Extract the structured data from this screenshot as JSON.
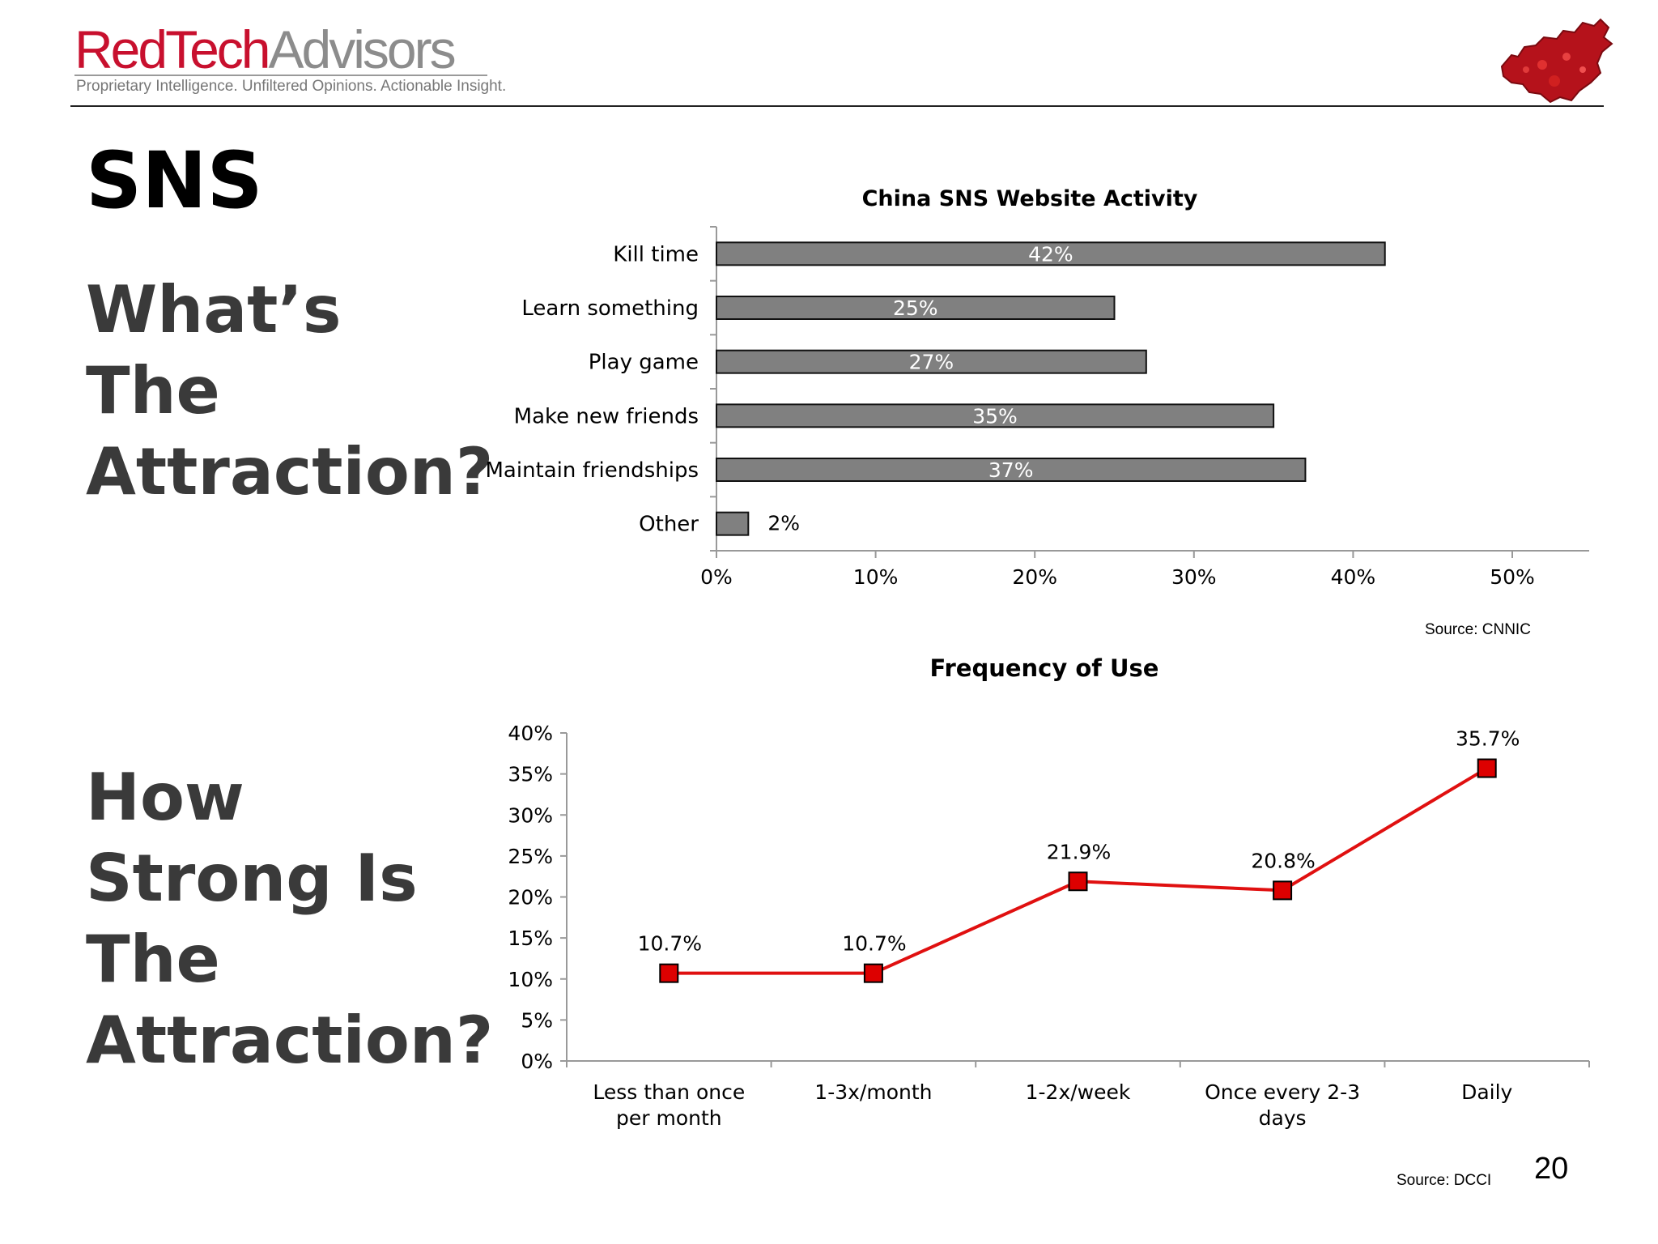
{
  "header": {
    "logo_red": "RedTech",
    "logo_grey": "Advisors",
    "tagline": "Proprietary Intelligence.  Unfiltered Opinions.  Actionable Insight.",
    "map_icon": "china-map-icon"
  },
  "slide": {
    "title": "SNS",
    "question1": [
      "What’s",
      "The",
      "Attraction?"
    ],
    "question2": [
      "How",
      "Strong Is",
      "The",
      "Attraction?"
    ],
    "page_number": "20"
  },
  "sources": {
    "chart1": "Source: CNNIC",
    "chart2": "Source: DCCI"
  },
  "colors": {
    "bar_fill": "#808080",
    "line_color": "#e01010",
    "marker_fill": "#dd0000"
  },
  "chart_data": [
    {
      "type": "bar",
      "orientation": "horizontal",
      "title": "China SNS Website Activity",
      "categories": [
        "Kill time",
        "Learn something",
        "Play game",
        "Make new friends",
        "Maintain friendships",
        "Other"
      ],
      "values": [
        42,
        25,
        27,
        35,
        37,
        2
      ],
      "value_labels": [
        "42%",
        "25%",
        "27%",
        "35%",
        "37%",
        "2%"
      ],
      "xlim": [
        0,
        50
      ],
      "x_ticks": [
        "0%",
        "10%",
        "20%",
        "30%",
        "40%",
        "50%"
      ],
      "grid": false,
      "legend": "none"
    },
    {
      "type": "line",
      "title": "Frequency of Use",
      "categories": [
        "Less than once per month",
        "1-3x/month",
        "1-2x/week",
        "Once every 2-3 days",
        "Daily"
      ],
      "values": [
        10.7,
        10.7,
        21.9,
        20.8,
        35.7
      ],
      "value_labels": [
        "10.7%",
        "10.7%",
        "21.9%",
        "20.8%",
        "35.7%"
      ],
      "ylim": [
        0,
        40
      ],
      "y_ticks": [
        "0%",
        "5%",
        "10%",
        "15%",
        "20%",
        "25%",
        "30%",
        "35%",
        "40%"
      ],
      "marker": "square",
      "grid": false,
      "legend": "none"
    }
  ]
}
